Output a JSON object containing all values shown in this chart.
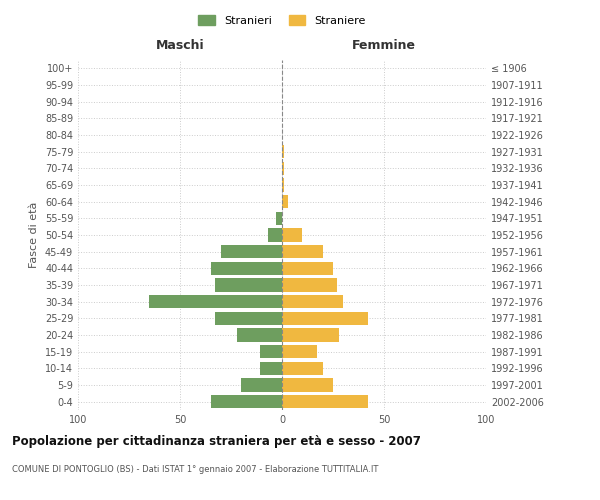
{
  "age_groups": [
    "0-4",
    "5-9",
    "10-14",
    "15-19",
    "20-24",
    "25-29",
    "30-34",
    "35-39",
    "40-44",
    "45-49",
    "50-54",
    "55-59",
    "60-64",
    "65-69",
    "70-74",
    "75-79",
    "80-84",
    "85-89",
    "90-94",
    "95-99",
    "100+"
  ],
  "birth_years": [
    "2002-2006",
    "1997-2001",
    "1992-1996",
    "1987-1991",
    "1982-1986",
    "1977-1981",
    "1972-1976",
    "1967-1971",
    "1962-1966",
    "1957-1961",
    "1952-1956",
    "1947-1951",
    "1942-1946",
    "1937-1941",
    "1932-1936",
    "1927-1931",
    "1922-1926",
    "1917-1921",
    "1912-1916",
    "1907-1911",
    "≤ 1906"
  ],
  "males": [
    35,
    20,
    11,
    11,
    22,
    33,
    65,
    33,
    35,
    30,
    7,
    3,
    0,
    0,
    0,
    0,
    0,
    0,
    0,
    0,
    0
  ],
  "females": [
    42,
    25,
    20,
    17,
    28,
    42,
    30,
    27,
    25,
    20,
    10,
    0,
    3,
    1,
    1,
    1,
    0,
    0,
    0,
    0,
    0
  ],
  "male_color": "#6e9e5f",
  "female_color": "#f0b840",
  "xlim": 100,
  "title": "Popolazione per cittadinanza straniera per età e sesso - 2007",
  "subtitle": "COMUNE DI PONTOGLIO (BS) - Dati ISTAT 1° gennaio 2007 - Elaborazione TUTTITALIA.IT",
  "ylabel_left": "Fasce di età",
  "header_left": "Maschi",
  "header_right": "Femmine",
  "legend_male": "Stranieri",
  "legend_female": "Straniere",
  "bg_color": "#ffffff",
  "grid_color": "#cccccc",
  "bar_height": 0.8
}
